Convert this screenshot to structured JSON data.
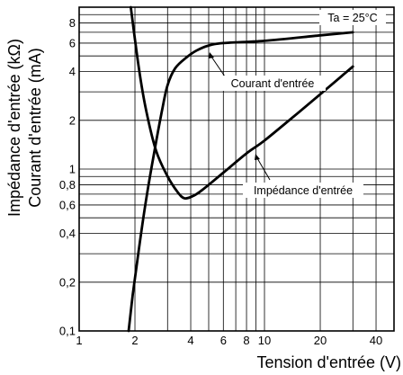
{
  "chart_data": {
    "type": "line",
    "xscale": "log",
    "yscale": "log",
    "xlim": [
      1,
      50
    ],
    "ylim": [
      0.1,
      10
    ],
    "x_ticks": [
      1,
      2,
      4,
      6,
      8,
      10,
      20,
      40
    ],
    "x_tick_labels": [
      "1",
      "2",
      "4",
      "6",
      "8",
      "10",
      "20",
      "40"
    ],
    "y_ticks": [
      0.1,
      0.2,
      0.4,
      0.6,
      0.8,
      1,
      2,
      4,
      6,
      8
    ],
    "y_tick_labels": [
      "0,1",
      "0,2",
      "0,4",
      "0,6",
      "0,8",
      "1",
      "2",
      "4",
      "6",
      "8"
    ],
    "grid": true,
    "xlabel": "Tension d'entrée (V)",
    "ylabel_1": "Impédance d'entrée (kΩ)",
    "ylabel_2": "Courant d'entrée  (mA)",
    "condition": "Ta = 25°C",
    "series": [
      {
        "name": "Courant d'entrée",
        "x": [
          1.85,
          1.95,
          2.1,
          2.3,
          2.55,
          2.8,
          3.0,
          3.3,
          3.8,
          4.3,
          5.0,
          6.0,
          10,
          20,
          30
        ],
        "y": [
          0.1,
          0.17,
          0.32,
          0.65,
          1.3,
          2.3,
          3.3,
          4.2,
          4.9,
          5.4,
          5.8,
          6.0,
          6.2,
          6.7,
          7.0
        ]
      },
      {
        "name": "Impédance d'entrée",
        "x": [
          1.9,
          2.1,
          2.3,
          2.6,
          3.0,
          3.4,
          3.7,
          4.1,
          4.6,
          6.0,
          8.0,
          10,
          15,
          20,
          30
        ],
        "y": [
          10,
          4.2,
          2.3,
          1.3,
          0.9,
          0.72,
          0.66,
          0.68,
          0.74,
          0.95,
          1.25,
          1.5,
          2.2,
          2.9,
          4.3
        ]
      }
    ]
  }
}
